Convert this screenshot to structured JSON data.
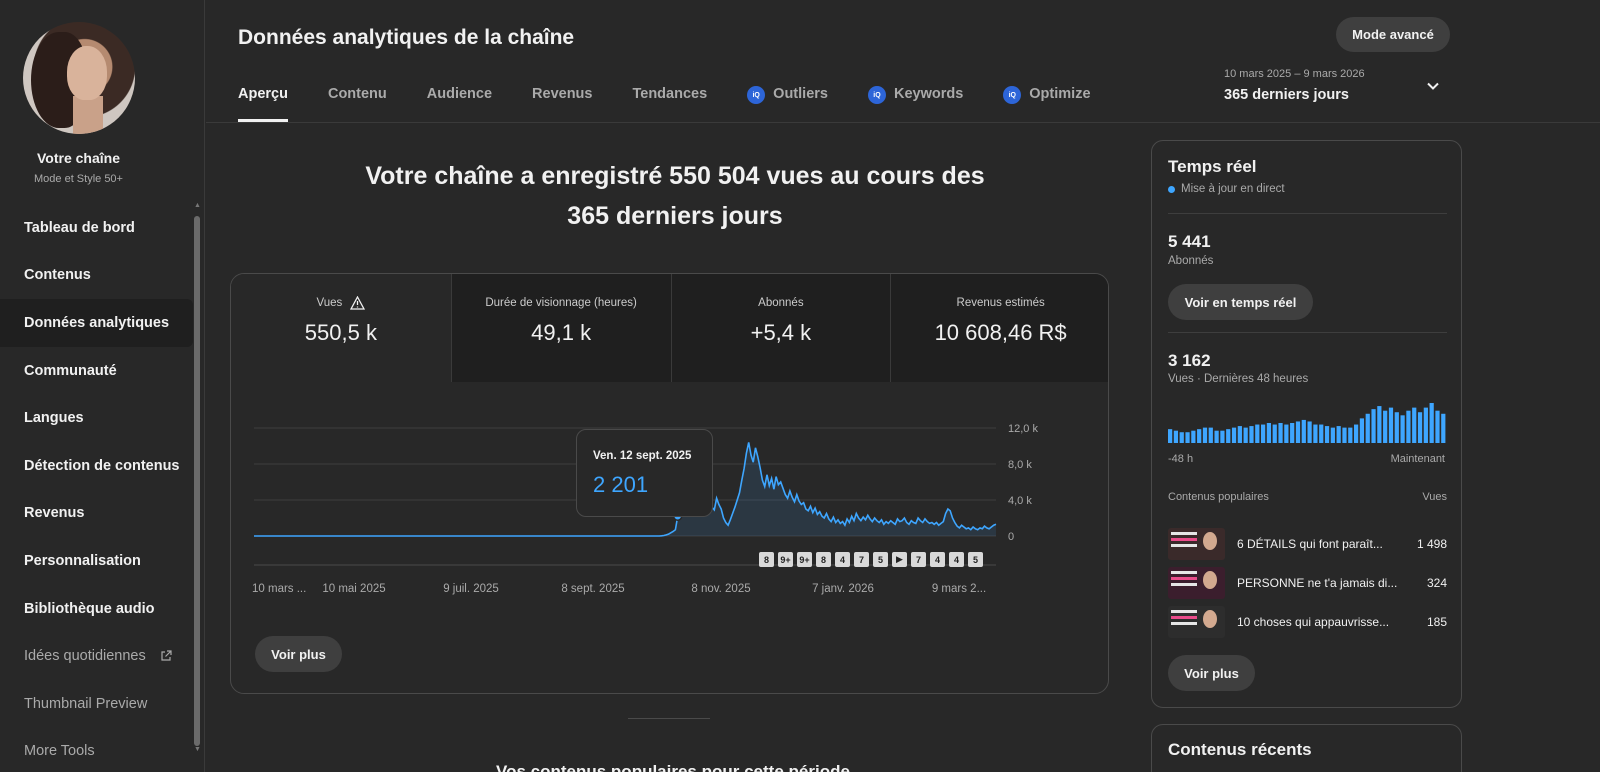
{
  "sidebar": {
    "channel_name": "Votre chaîne",
    "channel_sub": "Mode et Style 50+",
    "items": [
      {
        "label": "Tableau de bord"
      },
      {
        "label": "Contenus"
      },
      {
        "label": "Données analytiques"
      },
      {
        "label": "Communauté"
      },
      {
        "label": "Langues"
      },
      {
        "label": "Détection de contenus"
      },
      {
        "label": "Revenus"
      },
      {
        "label": "Personnalisation"
      },
      {
        "label": "Bibliothèque audio"
      },
      {
        "label": "Idées quotidiennes"
      },
      {
        "label": "Thumbnail Preview"
      },
      {
        "label": "More Tools"
      }
    ]
  },
  "header": {
    "title": "Données analytiques de la chaîne",
    "mode_button": "Mode avancé",
    "tabs": [
      {
        "label": "Aperçu"
      },
      {
        "label": "Contenu"
      },
      {
        "label": "Audience"
      },
      {
        "label": "Revenus"
      },
      {
        "label": "Tendances"
      },
      {
        "label": "Outliers",
        "icon": "vidiq"
      },
      {
        "label": "Keywords",
        "icon": "vidiq"
      },
      {
        "label": "Optimize",
        "icon": "vidiq"
      }
    ],
    "date_range": "10 mars 2025 – 9 mars 2026",
    "date_period": "365 derniers jours"
  },
  "headline": {
    "line1": "Votre chaîne a enregistré 550 504 vues au cours des",
    "line2": "365 derniers jours"
  },
  "metrics": [
    {
      "label": "Vues",
      "value": "550,5 k"
    },
    {
      "label": "Durée de visionnage (heures)",
      "value": "49,1 k"
    },
    {
      "label": "Abonnés",
      "value": "+5,4 k"
    },
    {
      "label": "Revenus estimés",
      "value": "10 608,46 R$"
    }
  ],
  "chart_data": {
    "type": "area",
    "x_ticks": [
      "10 mars ...",
      "10 mai 2025",
      "9 juil. 2025",
      "8 sept. 2025",
      "8 nov. 2025",
      "7 janv. 2026",
      "9 mars 2..."
    ],
    "y_ticks": [
      "12,0 k",
      "8,0 k",
      "4,0 k",
      "0"
    ],
    "ylim": [
      0,
      12000
    ],
    "series": [
      {
        "values": [
          0,
          0,
          0,
          0,
          0,
          0,
          0,
          0,
          0,
          0,
          0,
          0,
          0,
          0,
          0,
          0,
          0,
          0,
          0,
          0,
          0,
          0,
          0,
          0,
          0,
          0,
          0,
          0,
          0,
          0,
          0,
          0,
          0,
          0,
          0,
          0,
          0,
          0,
          0,
          0,
          0,
          0,
          0,
          0,
          0,
          0,
          0,
          0,
          0,
          0,
          0,
          0,
          0,
          0,
          0,
          0,
          0,
          0,
          0,
          0,
          0,
          0,
          0,
          0,
          0,
          0,
          0,
          0,
          0,
          0,
          0,
          0,
          0,
          0,
          0,
          0,
          0,
          0,
          0,
          0,
          0,
          0,
          0,
          0,
          0,
          0,
          0,
          0,
          0,
          0,
          0,
          0,
          0,
          0,
          0,
          0,
          0,
          0,
          0,
          0,
          0,
          0,
          0,
          0,
          0,
          0,
          0,
          0,
          0,
          0,
          0,
          0,
          0,
          0,
          0,
          0,
          0,
          0,
          0,
          0,
          0,
          0,
          0,
          0,
          0,
          0,
          0,
          0,
          0,
          0,
          0,
          0,
          0,
          0,
          0,
          0,
          0,
          0,
          0,
          0,
          0,
          0,
          0,
          0,
          0,
          0,
          0,
          0,
          0,
          0,
          0,
          0,
          0,
          0,
          0,
          0,
          0,
          0,
          0,
          0,
          0,
          0,
          0,
          0,
          0,
          0,
          0,
          0,
          0,
          0,
          0,
          0,
          0,
          0,
          0,
          0,
          0,
          0,
          20,
          60,
          120,
          200,
          350,
          500,
          700,
          2201,
          2600,
          3200,
          2400,
          3000,
          3600,
          2900,
          3300,
          2800,
          3500,
          3100,
          2700,
          3400,
          3000,
          2600,
          3200,
          2900,
          4200,
          3500,
          3000,
          2000,
          1500,
          1200,
          1800,
          2500,
          3200,
          4000,
          4800,
          6200,
          7500,
          9200,
          10400,
          9000,
          8200,
          9800,
          8800,
          7600,
          6200,
          5500,
          6800,
          5600,
          6400,
          5200,
          6600,
          5700,
          6000,
          5300,
          4600,
          4200,
          5000,
          4300,
          3800,
          4600,
          3900,
          3500,
          3700,
          3000,
          2800,
          3300,
          2600,
          3100,
          2400,
          2700,
          2200,
          2000,
          2500,
          1900,
          1600,
          2100,
          1500,
          1800,
          1400,
          1600,
          1200,
          1900,
          1500,
          2200,
          1700,
          2500,
          2000,
          1700,
          2100,
          1800,
          2300,
          1900,
          1600,
          2000,
          1700,
          1500,
          1800,
          1300,
          1600,
          1400,
          1700,
          1500,
          1300,
          1900,
          1600,
          1700,
          2000,
          1500,
          1300,
          1700,
          1500,
          1400,
          2000,
          1700,
          1500,
          1900,
          1600,
          1400,
          1500,
          1300,
          1500,
          1200,
          1400,
          1600,
          2500,
          3000,
          2800,
          2000,
          1500,
          1100,
          900,
          1200,
          1000,
          800,
          900,
          700,
          1000,
          800,
          700,
          900,
          800,
          1100,
          900,
          800,
          1000,
          1200,
          1300
        ]
      }
    ],
    "tooltip": {
      "date": "Ven. 12 sept. 2025",
      "value": "2 201"
    },
    "markers": [
      "8",
      "9+",
      "9+",
      "8",
      "4",
      "7",
      "5",
      "▶",
      "7",
      "4",
      "4",
      "5"
    ],
    "color": "#3ea6ff"
  },
  "card_button": "Voir plus",
  "popular_section_title": "Vos contenus populaires pour cette période",
  "realtime": {
    "title": "Temps réel",
    "live_label": "Mise à jour en direct",
    "subs_value": "5 441",
    "subs_label": "Abonnés",
    "realtime_button": "Voir en temps réel",
    "views_value": "3 162",
    "views_label": "Vues · Dernières 48 heures",
    "mini_values": [
      9,
      8,
      7,
      7,
      8,
      9,
      10,
      10,
      8,
      8,
      9,
      10,
      11,
      10,
      11,
      12,
      12,
      13,
      12,
      13,
      12,
      13,
      14,
      15,
      14,
      12,
      12,
      11,
      10,
      11,
      10,
      10,
      12,
      16,
      19,
      22,
      24,
      21,
      23,
      20,
      18,
      21,
      23,
      20,
      23,
      26,
      21,
      19
    ],
    "mini_left": "-48 h",
    "mini_right": "Maintenant",
    "popular_header": "Contenus populaires",
    "popular_views_header": "Vues",
    "popular": [
      {
        "title": "6 DÉTAILS qui font paraît...",
        "views": "1 498"
      },
      {
        "title": "PERSONNE ne t'a jamais di...",
        "views": "324"
      },
      {
        "title": "10 choses qui appauvrisse...",
        "views": "185"
      }
    ],
    "more_button": "Voir plus"
  },
  "recent": {
    "title": "Contenus récents"
  }
}
